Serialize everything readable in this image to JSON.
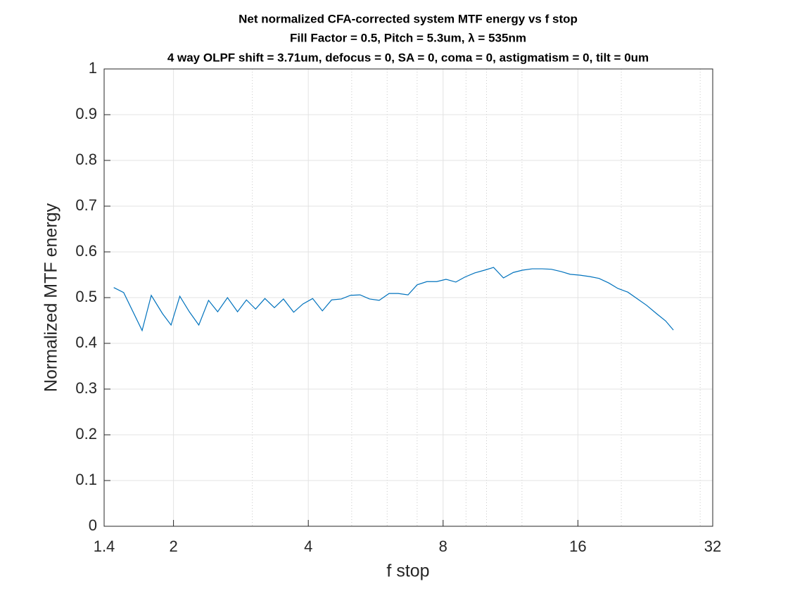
{
  "chart_data": {
    "type": "line",
    "title": [
      "Net normalized CFA-corrected system MTF energy vs f stop",
      "Fill Factor = 0.5, Pitch = 5.3um, λ = 535nm",
      "4 way OLPF shift = 3.71um, defocus = 0, SA = 0, coma = 0, astigmatism = 0, tilt = 0um"
    ],
    "xlabel": "f stop",
    "ylabel": "Normalized MTF energy",
    "xscale": "log",
    "grid": true,
    "xlim": [
      1.4,
      32
    ],
    "xticks": [
      1.4,
      2,
      4,
      8,
      16,
      32
    ],
    "xminorticks": [
      3,
      5,
      6,
      7,
      9,
      10,
      12,
      20,
      30
    ],
    "ylim": [
      0,
      1
    ],
    "yticks": [
      0,
      0.1,
      0.2,
      0.3,
      0.4,
      0.5,
      0.6,
      0.7,
      0.8,
      0.9,
      1
    ],
    "x": [
      1.471,
      1.548,
      1.702,
      1.784,
      1.89,
      1.975,
      2.066,
      2.17,
      2.278,
      2.395,
      2.51,
      2.64,
      2.78,
      2.91,
      3.05,
      3.2,
      3.36,
      3.52,
      3.71,
      3.89,
      4.09,
      4.3,
      4.51,
      4.74,
      4.97,
      5.22,
      5.48,
      5.76,
      6.06,
      6.35,
      6.68,
      7.0,
      7.36,
      7.74,
      8.12,
      8.54,
      8.95,
      9.41,
      9.9,
      10.37,
      10.91,
      11.48,
      12.03,
      12.65,
      13.31,
      13.95,
      14.67,
      15.38,
      16.18,
      17.01,
      17.83,
      18.75,
      19.65,
      20.68,
      21.75,
      22.79,
      23.97,
      25.12,
      26.14
    ],
    "series": [
      {
        "color": "#0072bd",
        "values": [
          0.522,
          0.511,
          0.428,
          0.505,
          0.465,
          0.44,
          0.503,
          0.469,
          0.44,
          0.494,
          0.469,
          0.5,
          0.469,
          0.495,
          0.475,
          0.498,
          0.478,
          0.497,
          0.468,
          0.486,
          0.498,
          0.471,
          0.495,
          0.497,
          0.505,
          0.506,
          0.497,
          0.494,
          0.509,
          0.509,
          0.506,
          0.528,
          0.535,
          0.535,
          0.54,
          0.534,
          0.545,
          0.554,
          0.56,
          0.566,
          0.543,
          0.555,
          0.56,
          0.563,
          0.563,
          0.562,
          0.557,
          0.551,
          0.549,
          0.546,
          0.542,
          0.532,
          0.52,
          0.512,
          0.497,
          0.483,
          0.465,
          0.449,
          0.429
        ]
      }
    ]
  }
}
